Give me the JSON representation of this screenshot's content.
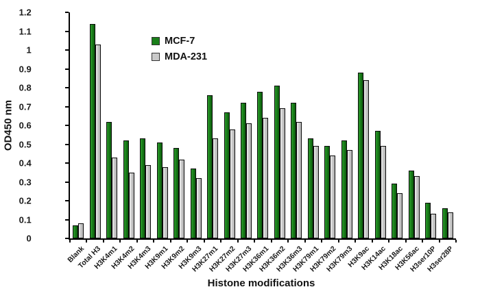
{
  "figure": {
    "background": "#ffffff",
    "axis_color": "#000000"
  },
  "chart_data": {
    "type": "bar",
    "title": "",
    "xlabel": "Histone modifications",
    "ylabel": "OD450 nm",
    "ylim": [
      0,
      1.2
    ],
    "ytick_step": 0.1,
    "grid": false,
    "legend_position": "upper-left-inside",
    "categories": [
      "Blank",
      "Total H3",
      "H3K4m1",
      "H3K4m2",
      "H3K4m3",
      "H3K9m1",
      "H3K9m2",
      "H3K9m3",
      "H3K27m1",
      "H3K27m2",
      "H3K27m3",
      "H3K36m1",
      "H3K36m2",
      "H3K36m3",
      "H3K79m1",
      "H3K79m2",
      "H3K79m3",
      "H3K9ac",
      "H3K14ac",
      "H3K18ac",
      "H3K56ac",
      "H3ser10P",
      "H3ser28P"
    ],
    "series": [
      {
        "name": "MCF-7",
        "color": "#1a7f1a",
        "color_light": "#2d9b2d",
        "color_dark": "#0d5c0d",
        "values": [
          0.07,
          1.14,
          0.62,
          0.52,
          0.53,
          0.51,
          0.48,
          0.37,
          0.76,
          0.67,
          0.72,
          0.78,
          0.81,
          0.72,
          0.53,
          0.49,
          0.52,
          0.88,
          0.57,
          0.29,
          0.36,
          0.19,
          0.16
        ]
      },
      {
        "name": "MDA-231",
        "color": "#c9c9c9",
        "color_light": "#f2f2f2",
        "color_dark": "#b3b3b3",
        "values": [
          0.08,
          1.03,
          0.43,
          0.35,
          0.39,
          0.38,
          0.42,
          0.32,
          0.53,
          0.58,
          0.61,
          0.64,
          0.69,
          0.62,
          0.49,
          0.44,
          0.47,
          0.84,
          0.49,
          0.24,
          0.33,
          0.13,
          0.14
        ]
      }
    ]
  }
}
